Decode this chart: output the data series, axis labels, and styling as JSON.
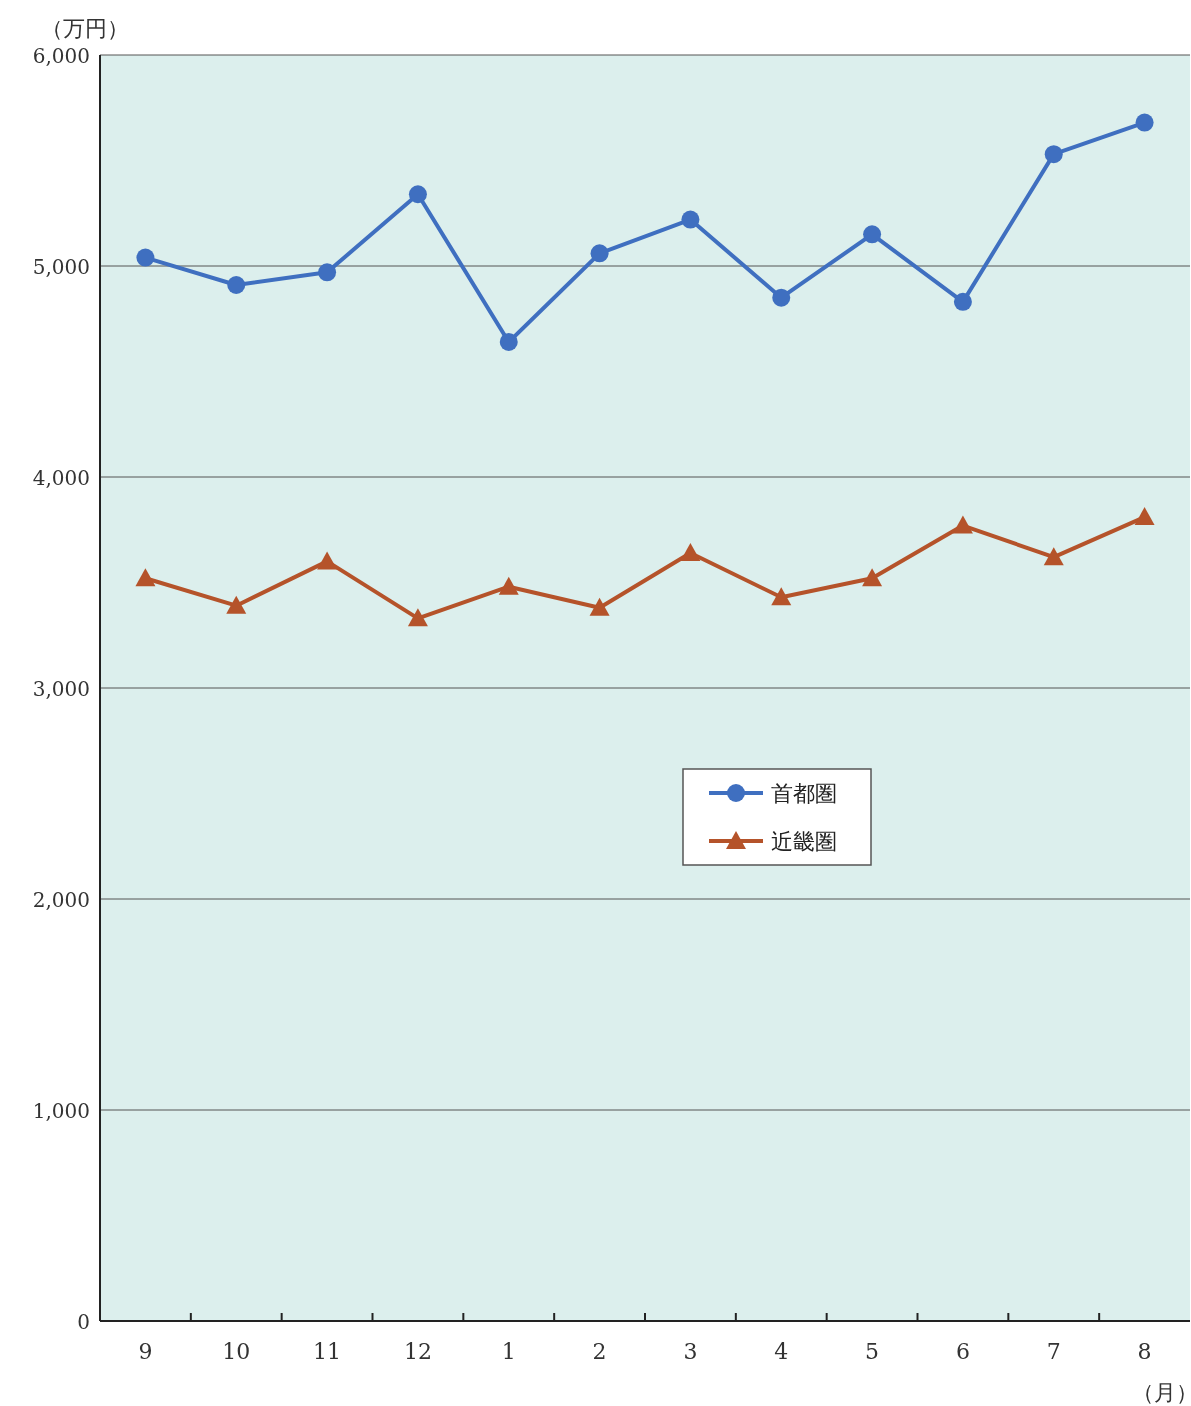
{
  "chart_data": {
    "type": "line",
    "ylabel": "（万円）",
    "xlabel": "（月）",
    "categories": [
      "9",
      "10",
      "11",
      "12",
      "1",
      "2",
      "3",
      "4",
      "5",
      "6",
      "7",
      "8"
    ],
    "series": [
      {
        "name": "首都圏",
        "color": "#3f6fc0",
        "marker": "circle",
        "values": [
          5040,
          4910,
          4970,
          5340,
          4640,
          5060,
          5220,
          4850,
          5150,
          4830,
          5530,
          5680
        ]
      },
      {
        "name": "近畿圏",
        "color": "#b5532a",
        "marker": "triangle",
        "values": [
          3520,
          3390,
          3600,
          3330,
          3480,
          3380,
          3640,
          3430,
          3520,
          3770,
          3620,
          3810
        ]
      }
    ],
    "ylim": [
      0,
      6000
    ],
    "yticks": [
      0,
      {
        "value": 1000,
        "label": "1,000"
      },
      {
        "value": 2000,
        "label": "2,000"
      },
      {
        "value": 3000,
        "label": "3,000"
      },
      {
        "value": 4000,
        "label": "4,000"
      },
      {
        "value": 5000,
        "label": "5,000"
      },
      {
        "value": 6000,
        "label": "6,000"
      }
    ],
    "grid": "y",
    "legend": "center"
  }
}
